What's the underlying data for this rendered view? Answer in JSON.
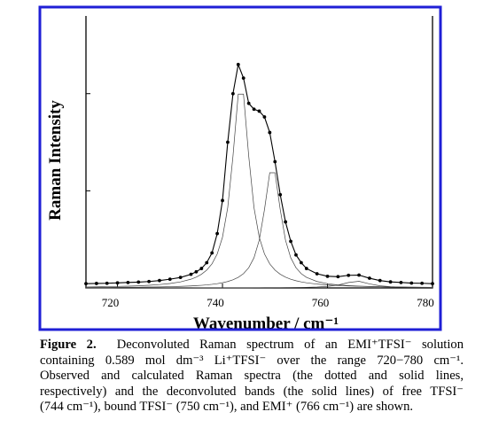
{
  "chart_data": {
    "type": "line",
    "xlabel": "Wavenumber / cm⁻¹",
    "ylabel": "Raman Intensity",
    "x": [
      714,
      716,
      718,
      720,
      722,
      724,
      726,
      728,
      730,
      732,
      734,
      735,
      736,
      737,
      738,
      739,
      740,
      741,
      742,
      743,
      744,
      745,
      746,
      747,
      748,
      749,
      750,
      751,
      752,
      753,
      754,
      755,
      756,
      758,
      760,
      762,
      764,
      766,
      768,
      770,
      772,
      774,
      776,
      778,
      780
    ],
    "series": [
      {
        "color": "#000000",
        "marker": "circle",
        "values": [
          0.022,
          0.023,
          0.024,
          0.026,
          0.028,
          0.03,
          0.033,
          0.038,
          0.045,
          0.054,
          0.07,
          0.083,
          0.1,
          0.13,
          0.18,
          0.28,
          0.45,
          0.75,
          1.0,
          1.15,
          1.08,
          0.95,
          0.92,
          0.91,
          0.88,
          0.8,
          0.65,
          0.48,
          0.34,
          0.24,
          0.17,
          0.13,
          0.1,
          0.073,
          0.06,
          0.058,
          0.065,
          0.066,
          0.05,
          0.038,
          0.031,
          0.028,
          0.025,
          0.024,
          0.022
        ]
      },
      {
        "color": "#444444",
        "marker": "none",
        "values": [
          0.0049,
          0.0056,
          0.0065,
          0.0076,
          0.0091,
          0.011,
          0.0137,
          0.0173,
          0.0227,
          0.0311,
          0.0449,
          0.0556,
          0.0704,
          0.0917,
          0.1238,
          0.1749,
          0.2611,
          0.4136,
          0.6784,
          0.9976,
          0.9976,
          0.6784,
          0.4136,
          0.2611,
          0.1749,
          0.1238,
          0.0917,
          0.0704,
          0.0556,
          0.0449,
          0.0371,
          0.0311,
          0.0265,
          0.0198,
          0.0153,
          0.0122,
          0.01,
          0.0083,
          0.007,
          0.006,
          0.0052,
          0.0045,
          0.004,
          0.0036,
          0.0032
        ]
      },
      {
        "color": "#444444",
        "marker": "none",
        "values": [
          0.002,
          0.0022,
          0.0025,
          0.0029,
          0.0033,
          0.0038,
          0.0045,
          0.0053,
          0.0065,
          0.0081,
          0.0102,
          0.0118,
          0.0135,
          0.0157,
          0.0185,
          0.022,
          0.0267,
          0.0331,
          0.0418,
          0.0545,
          0.0736,
          0.104,
          0.1552,
          0.2458,
          0.4034,
          0.5929,
          0.5929,
          0.4034,
          0.2458,
          0.1552,
          0.104,
          0.0736,
          0.0545,
          0.0331,
          0.022,
          0.0157,
          0.0118,
          0.0091,
          0.0073,
          0.006,
          0.0049,
          0.0042,
          0.0036,
          0.0031,
          0.0027
        ]
      },
      {
        "color": "#444444",
        "marker": "none",
        "values": [
          0.0001,
          0.0001,
          0.0001,
          0.0002,
          0.0002,
          0.0002,
          0.0002,
          0.0002,
          0.0003,
          0.0003,
          0.0003,
          0.0004,
          0.0004,
          0.0004,
          0.0004,
          0.0004,
          0.0005,
          0.0005,
          0.0006,
          0.0006,
          0.0007,
          0.0007,
          0.0008,
          0.0009,
          0.001,
          0.0011,
          0.0013,
          0.0014,
          0.0016,
          0.0019,
          0.0022,
          0.0026,
          0.0032,
          0.0048,
          0.008,
          0.0148,
          0.028,
          0.034,
          0.0207,
          0.0108,
          0.0062,
          0.0039,
          0.0026,
          0.0019,
          0.0014
        ]
      }
    ],
    "xlim": [
      714,
      780
    ],
    "xticks": [
      720,
      740,
      760,
      780
    ],
    "ylim": [
      0,
      1.4
    ],
    "yticks": [
      0,
      0.5,
      1.0
    ],
    "frame_color": "#1f1fd6"
  },
  "caption": {
    "label": "Figure 2.",
    "lines": [
      "Deconvoluted Raman spectrum of an EMI⁺TFSI⁻ solution",
      "containing 0.589 mol dm⁻³ Li⁺TFSI⁻ over the range 720−780 cm⁻¹.",
      "Observed and calculated Raman spectra (the dotted and solid lines,",
      "respectively) and the deconvoluted bands (the solid lines) of free TFSI⁻",
      "(744 cm⁻¹), bound TFSI⁻ (750 cm⁻¹), and EMI⁺ (766 cm⁻¹) are shown."
    ]
  }
}
